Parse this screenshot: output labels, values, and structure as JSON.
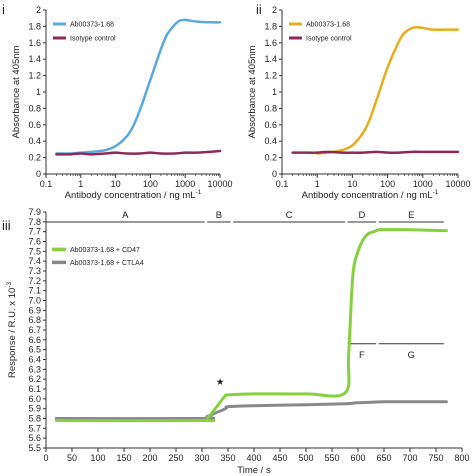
{
  "colors": {
    "blue": "#5aa9dc",
    "orange": "#e8ac1c",
    "maroon": "#8e2a55",
    "green": "#86cf3d",
    "grey": "#888888",
    "axis": "#333333"
  },
  "chart_data": [
    {
      "panel": "i",
      "type": "line",
      "x_scale": "log",
      "xlim": [
        0.1,
        10000
      ],
      "ylim": [
        0,
        2.0
      ],
      "x_ticks": [
        "0.1",
        "1",
        "10",
        "100",
        "1000",
        "10000"
      ],
      "y_ticks": [
        "0",
        "0.2",
        "0.4",
        "0.6",
        "0.8",
        "1",
        "1.2",
        "1.4",
        "1.6",
        "1.8",
        "2"
      ],
      "xlabel": "Antibody concentration / ng mL",
      "xlabel_superscript": "-1",
      "ylabel": "Absorbance at 405nm",
      "legend": "top-left",
      "series": [
        {
          "name": "Ab00373-1.68",
          "color": "#5aa9dc",
          "x": [
            0.2,
            0.5,
            1,
            2,
            5,
            10,
            20,
            30,
            50,
            100,
            200,
            300,
            500,
            700,
            1000,
            2000,
            5000,
            10000
          ],
          "y": [
            0.25,
            0.25,
            0.26,
            0.27,
            0.29,
            0.34,
            0.45,
            0.56,
            0.78,
            1.15,
            1.52,
            1.7,
            1.82,
            1.87,
            1.88,
            1.86,
            1.85,
            1.85
          ]
        },
        {
          "name": "Isotype control",
          "color": "#8e2a55",
          "x": [
            0.2,
            0.5,
            1,
            2,
            5,
            10,
            20,
            50,
            100,
            200,
            500,
            1000,
            2000,
            5000,
            10000
          ],
          "y": [
            0.24,
            0.24,
            0.25,
            0.24,
            0.25,
            0.26,
            0.25,
            0.25,
            0.26,
            0.25,
            0.25,
            0.26,
            0.26,
            0.27,
            0.28
          ]
        }
      ]
    },
    {
      "panel": "ii",
      "type": "line",
      "x_scale": "log",
      "xlim": [
        0.1,
        10000
      ],
      "ylim": [
        0,
        2.0
      ],
      "x_ticks": [
        "0.1",
        "1",
        "10",
        "100",
        "1000",
        "10000"
      ],
      "y_ticks": [
        "0",
        "0.2",
        "0.4",
        "0.6",
        "0.8",
        "1",
        "1.2",
        "1.4",
        "1.6",
        "1.8",
        "2"
      ],
      "xlabel": "Antibody concentration / ng mL",
      "xlabel_superscript": "-1",
      "ylabel": "Absorbance at 405nm",
      "legend": "top-left",
      "series": [
        {
          "name": "Ab00373-1.68",
          "color": "#e8ac1c",
          "x": [
            1,
            2,
            5,
            10,
            20,
            30,
            50,
            100,
            200,
            300,
            500,
            700,
            1000,
            2000,
            5000,
            10000
          ],
          "y": [
            0.25,
            0.26,
            0.29,
            0.35,
            0.5,
            0.65,
            0.92,
            1.3,
            1.6,
            1.72,
            1.78,
            1.79,
            1.78,
            1.76,
            1.76,
            1.76
          ]
        },
        {
          "name": "Isotype control",
          "color": "#8e2a55",
          "x": [
            0.2,
            0.5,
            1,
            2,
            5,
            10,
            20,
            50,
            100,
            200,
            500,
            1000,
            2000,
            5000,
            10000
          ],
          "y": [
            0.26,
            0.26,
            0.26,
            0.27,
            0.26,
            0.26,
            0.26,
            0.27,
            0.26,
            0.26,
            0.27,
            0.27,
            0.27,
            0.27,
            0.27
          ]
        }
      ]
    },
    {
      "panel": "iii",
      "type": "line",
      "xlim": [
        0,
        800
      ],
      "ylim": [
        5.5,
        7.9
      ],
      "x_ticks": [
        "0",
        "50",
        "100",
        "150",
        "200",
        "250",
        "300",
        "350",
        "400",
        "450",
        "500",
        "550",
        "600",
        "650",
        "700",
        "750",
        "800"
      ],
      "y_ticks": [
        "5.5",
        "5.6",
        "5.7",
        "5.8",
        "5.9",
        "6.0",
        "6.1",
        "6.2",
        "6.3",
        "6.4",
        "6.5",
        "6.6",
        "6.7",
        "6.8",
        "6.9",
        "7.0",
        "7.1",
        "7.2",
        "7.3",
        "7.4",
        "7.5",
        "7.6",
        "7.7",
        "7.8",
        "7.9"
      ],
      "xlabel": "Time / s",
      "ylabel": "Response / R.U. x 10",
      "ylabel_superscript": "-3",
      "legend": "top-left",
      "annotations": {
        "star": "★",
        "phases_top": [
          {
            "label": "A",
            "x0": 0,
            "x1": 305
          },
          {
            "label": "B",
            "x0": 310,
            "x1": 355
          },
          {
            "label": "C",
            "x0": 360,
            "x1": 575
          },
          {
            "label": "D",
            "x0": 580,
            "x1": 635
          },
          {
            "label": "E",
            "x0": 640,
            "x1": 765
          }
        ],
        "phases_bottom": [
          {
            "label": "F",
            "x0": 580,
            "x1": 635
          },
          {
            "label": "G",
            "x0": 640,
            "x1": 765
          }
        ]
      },
      "series": [
        {
          "name": "Ab00373-1.68 + CD47",
          "color": "#86cf3d",
          "x": [
            20,
            300,
            310,
            340,
            345,
            350,
            400,
            500,
            575,
            582,
            590,
            600,
            610,
            620,
            630,
            640,
            650,
            700,
            770
          ],
          "y": [
            5.78,
            5.78,
            5.8,
            6.0,
            6.03,
            6.04,
            6.05,
            6.05,
            6.06,
            6.45,
            7.25,
            7.5,
            7.62,
            7.68,
            7.7,
            7.72,
            7.72,
            7.72,
            7.71
          ]
        },
        {
          "name": "Ab00373-1.68 + CTLA4",
          "color": "#888888",
          "x": [
            20,
            300,
            310,
            345,
            350,
            400,
            500,
            575,
            600,
            650,
            700,
            770
          ],
          "y": [
            5.8,
            5.8,
            5.82,
            5.9,
            5.92,
            5.93,
            5.94,
            5.95,
            5.96,
            5.97,
            5.97,
            5.97
          ]
        }
      ]
    }
  ]
}
